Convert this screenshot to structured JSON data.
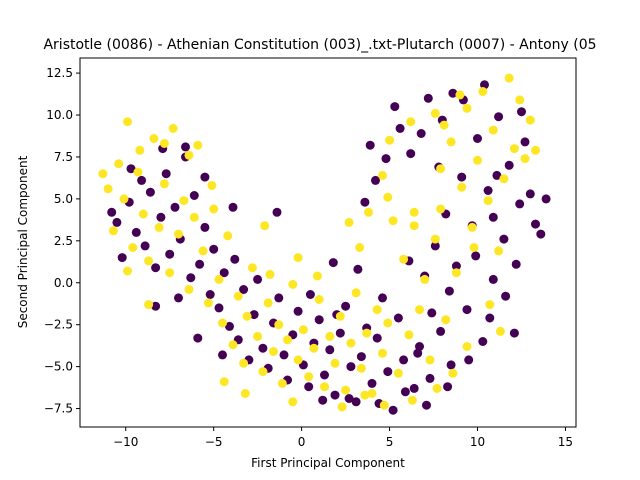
{
  "chart_data": {
    "type": "scatter",
    "title": "Aristotle (0086) - Athenian Constitution (003)_.txt-Plutarch (0007) - Antony (05",
    "xlabel": "First Principal Component",
    "ylabel": "Second Principal Component",
    "xlim": [
      -12.6,
      15.6
    ],
    "ylim": [
      -8.6,
      13.4
    ],
    "xticks": [
      -10,
      -5,
      0,
      5,
      10,
      15
    ],
    "yticks": [
      -7.5,
      -5.0,
      -2.5,
      0.0,
      2.5,
      5.0,
      7.5,
      10.0,
      12.5
    ],
    "xtick_labels": [
      "−10",
      "−5",
      "0",
      "5",
      "10",
      "15"
    ],
    "ytick_labels": [
      "−7.5",
      "−5.0",
      "−2.5",
      "0.0",
      "2.5",
      "5.0",
      "7.5",
      "10.0",
      "12.5"
    ],
    "grid": false,
    "series": [
      {
        "color": "#440154",
        "points": [
          [
            -10.8,
            4.2
          ],
          [
            -10.5,
            3.6
          ],
          [
            -10.2,
            1.5
          ],
          [
            -9.8,
            4.8
          ],
          [
            -9.4,
            3.0
          ],
          [
            -9.1,
            6.1
          ],
          [
            -8.9,
            2.2
          ],
          [
            -8.6,
            5.4
          ],
          [
            -8.3,
            0.9
          ],
          [
            -8.0,
            3.9
          ],
          [
            -7.7,
            6.5
          ],
          [
            -7.5,
            1.7
          ],
          [
            -7.2,
            4.5
          ],
          [
            -6.9,
            2.6
          ],
          [
            -6.6,
            7.5
          ],
          [
            -6.3,
            0.3
          ],
          [
            -6.1,
            5.2
          ],
          [
            -5.8,
            1.1
          ],
          [
            -5.5,
            3.3
          ],
          [
            -5.2,
            -0.7
          ],
          [
            -5.0,
            2.0
          ],
          [
            -4.7,
            -1.5
          ],
          [
            -4.4,
            0.6
          ],
          [
            -4.1,
            -2.6
          ],
          [
            -3.8,
            1.4
          ],
          [
            -3.6,
            -3.4
          ],
          [
            -3.3,
            -0.4
          ],
          [
            -3.0,
            -4.6
          ],
          [
            -2.7,
            -1.9
          ],
          [
            -2.5,
            0.2
          ],
          [
            -2.2,
            -3.9
          ],
          [
            -1.9,
            -5.1
          ],
          [
            -1.6,
            -2.4
          ],
          [
            -1.3,
            -0.9
          ],
          [
            -1.0,
            -4.3
          ],
          [
            -0.8,
            -5.8
          ],
          [
            -0.5,
            -3.1
          ],
          [
            -0.2,
            -1.7
          ],
          [
            0.1,
            -4.9
          ],
          [
            0.4,
            -6.2
          ],
          [
            0.7,
            -3.6
          ],
          [
            1.0,
            -2.2
          ],
          [
            1.3,
            -5.5
          ],
          [
            1.6,
            -4.0
          ],
          [
            1.9,
            -6.7
          ],
          [
            2.2,
            -3.0
          ],
          [
            2.5,
            -1.4
          ],
          [
            2.8,
            -5.0
          ],
          [
            3.1,
            -7.1
          ],
          [
            3.4,
            -4.4
          ],
          [
            3.7,
            -2.7
          ],
          [
            4.0,
            -6.0
          ],
          [
            4.3,
            -3.3
          ],
          [
            4.6,
            -0.9
          ],
          [
            4.9,
            -5.3
          ],
          [
            5.2,
            -7.6
          ],
          [
            5.5,
            -2.1
          ],
          [
            5.8,
            -4.6
          ],
          [
            6.1,
            1.3
          ],
          [
            6.4,
            -6.3
          ],
          [
            6.7,
            -3.8
          ],
          [
            7.0,
            0.4
          ],
          [
            7.3,
            -5.7
          ],
          [
            7.6,
            2.2
          ],
          [
            7.9,
            -2.9
          ],
          [
            8.2,
            4.1
          ],
          [
            8.5,
            -4.9
          ],
          [
            8.8,
            1.0
          ],
          [
            9.1,
            6.3
          ],
          [
            9.4,
            -1.6
          ],
          [
            9.7,
            3.4
          ],
          [
            10.0,
            8.6
          ],
          [
            10.3,
            -3.5
          ],
          [
            10.6,
            5.5
          ],
          [
            10.9,
            0.2
          ],
          [
            11.2,
            9.9
          ],
          [
            11.5,
            2.6
          ],
          [
            11.8,
            7.0
          ],
          [
            12.1,
            -3.0
          ],
          [
            12.4,
            4.7
          ],
          [
            12.7,
            8.4
          ],
          [
            13.0,
            5.3
          ],
          [
            13.3,
            3.5
          ],
          [
            13.6,
            2.9
          ],
          [
            13.9,
            5.0
          ],
          [
            9.2,
            10.9
          ],
          [
            8.0,
            9.7
          ],
          [
            7.2,
            11.0
          ],
          [
            6.8,
            8.9
          ],
          [
            5.6,
            9.2
          ],
          [
            4.8,
            7.4
          ],
          [
            4.2,
            6.1
          ],
          [
            3.6,
            4.8
          ],
          [
            3.9,
            8.2
          ],
          [
            5.3,
            10.5
          ],
          [
            6.2,
            7.7
          ],
          [
            7.8,
            6.9
          ],
          [
            8.6,
            11.3
          ],
          [
            10.4,
            11.8
          ],
          [
            11.1,
            6.4
          ],
          [
            12.5,
            10.2
          ],
          [
            10.9,
            3.9
          ],
          [
            9.9,
            1.6
          ],
          [
            8.4,
            -0.5
          ],
          [
            7.4,
            -1.8
          ],
          [
            6.6,
            -4.2
          ],
          [
            5.9,
            -6.5
          ],
          [
            7.1,
            -7.3
          ],
          [
            8.3,
            -6.2
          ],
          [
            9.5,
            -4.6
          ],
          [
            10.7,
            -2.1
          ],
          [
            11.6,
            -0.8
          ],
          [
            12.2,
            1.1
          ],
          [
            -1.4,
            4.2
          ],
          [
            0.5,
            -0.7
          ],
          [
            2.0,
            -1.9
          ],
          [
            -3.9,
            4.5
          ],
          [
            -5.5,
            6.3
          ],
          [
            -7.9,
            8.0
          ],
          [
            -9.7,
            6.8
          ],
          [
            -6.6,
            8.1
          ],
          [
            -8.3,
            -1.4
          ],
          [
            -7.0,
            -0.9
          ],
          [
            -5.9,
            -3.3
          ],
          [
            -4.5,
            -4.3
          ],
          [
            1.2,
            -7.0
          ],
          [
            2.7,
            -6.9
          ],
          [
            4.4,
            -7.2
          ],
          [
            3.2,
            0.8
          ],
          [
            1.8,
            1.2
          ]
        ]
      },
      {
        "color": "#fde725",
        "points": [
          [
            -11.3,
            6.5
          ],
          [
            -11.0,
            5.6
          ],
          [
            -10.7,
            3.1
          ],
          [
            -10.4,
            7.1
          ],
          [
            -10.1,
            5.0
          ],
          [
            -9.9,
            9.6
          ],
          [
            -9.6,
            2.1
          ],
          [
            -9.3,
            6.6
          ],
          [
            -9.0,
            4.1
          ],
          [
            -8.7,
            1.3
          ],
          [
            -8.4,
            8.6
          ],
          [
            -8.1,
            3.3
          ],
          [
            -7.8,
            5.9
          ],
          [
            -7.5,
            0.6
          ],
          [
            -7.3,
            9.2
          ],
          [
            -7.0,
            2.9
          ],
          [
            -6.7,
            4.9
          ],
          [
            -6.4,
            -0.4
          ],
          [
            -6.1,
            3.9
          ],
          [
            -5.9,
            8.2
          ],
          [
            -5.6,
            1.9
          ],
          [
            -5.3,
            -1.2
          ],
          [
            -5.0,
            4.4
          ],
          [
            -4.7,
            0.2
          ],
          [
            -4.5,
            -2.4
          ],
          [
            -4.2,
            2.8
          ],
          [
            -3.9,
            -3.7
          ],
          [
            -3.6,
            -0.8
          ],
          [
            -3.3,
            -4.8
          ],
          [
            -3.1,
            -2.0
          ],
          [
            -2.8,
            0.9
          ],
          [
            -2.5,
            -3.2
          ],
          [
            -2.2,
            -5.3
          ],
          [
            -1.9,
            -1.2
          ],
          [
            -1.6,
            -4.1
          ],
          [
            -1.3,
            -2.5
          ],
          [
            -1.1,
            -6.0
          ],
          [
            -0.8,
            -3.4
          ],
          [
            -0.5,
            -0.1
          ],
          [
            -0.2,
            -4.6
          ],
          [
            0.1,
            -2.8
          ],
          [
            0.4,
            -5.6
          ],
          [
            0.7,
            -3.9
          ],
          [
            1.0,
            -1.0
          ],
          [
            1.3,
            -6.2
          ],
          [
            1.6,
            -3.2
          ],
          [
            1.9,
            -4.8
          ],
          [
            2.2,
            -2.0
          ],
          [
            2.5,
            -6.4
          ],
          [
            2.8,
            -3.6
          ],
          [
            3.1,
            -0.6
          ],
          [
            3.4,
            -5.1
          ],
          [
            3.7,
            -3.0
          ],
          [
            4.0,
            -6.6
          ],
          [
            4.3,
            -1.6
          ],
          [
            4.6,
            -4.2
          ],
          [
            4.9,
            -2.4
          ],
          [
            5.2,
            3.7
          ],
          [
            5.5,
            -5.4
          ],
          [
            5.8,
            1.4
          ],
          [
            6.1,
            -3.1
          ],
          [
            6.4,
            4.2
          ],
          [
            6.7,
            -1.6
          ],
          [
            7.0,
            0.2
          ],
          [
            7.3,
            -4.6
          ],
          [
            7.6,
            2.6
          ],
          [
            7.9,
            6.8
          ],
          [
            8.2,
            -2.2
          ],
          [
            8.5,
            8.4
          ],
          [
            8.8,
            0.6
          ],
          [
            9.1,
            5.7
          ],
          [
            9.4,
            10.4
          ],
          [
            9.7,
            3.3
          ],
          [
            10.0,
            7.3
          ],
          [
            10.3,
            11.4
          ],
          [
            10.6,
            4.9
          ],
          [
            10.9,
            9.1
          ],
          [
            11.2,
            1.9
          ],
          [
            11.5,
            6.2
          ],
          [
            11.8,
            12.2
          ],
          [
            12.1,
            8.0
          ],
          [
            12.4,
            10.9
          ],
          [
            12.7,
            7.4
          ],
          [
            13.0,
            9.7
          ],
          [
            13.3,
            7.9
          ],
          [
            9.0,
            11.2
          ],
          [
            8.1,
            9.4
          ],
          [
            7.6,
            10.1
          ],
          [
            6.2,
            9.6
          ],
          [
            5.0,
            8.5
          ],
          [
            4.6,
            6.4
          ],
          [
            3.8,
            4.2
          ],
          [
            3.3,
            2.1
          ],
          [
            2.7,
            3.6
          ],
          [
            4.9,
            5.1
          ],
          [
            6.4,
            3.4
          ],
          [
            7.9,
            4.4
          ],
          [
            9.8,
            2.1
          ],
          [
            10.7,
            -1.3
          ],
          [
            11.3,
            -2.9
          ],
          [
            9.4,
            -3.8
          ],
          [
            8.6,
            -5.4
          ],
          [
            7.7,
            -6.3
          ],
          [
            6.3,
            -7.0
          ],
          [
            -0.2,
            1.5
          ],
          [
            -1.8,
            0.5
          ],
          [
            0.9,
            0.4
          ],
          [
            -0.5,
            -7.1
          ],
          [
            -3.2,
            -6.6
          ],
          [
            -4.4,
            -5.9
          ],
          [
            -8.7,
            -1.3
          ],
          [
            -9.9,
            0.7
          ],
          [
            -6.4,
            7.6
          ],
          [
            -7.8,
            8.3
          ],
          [
            -9.2,
            7.9
          ],
          [
            -5.1,
            5.8
          ],
          [
            -2.1,
            3.4
          ],
          [
            2.3,
            -7.4
          ],
          [
            4.7,
            -7.3
          ],
          [
            3.6,
            -6.7
          ]
        ]
      }
    ]
  }
}
